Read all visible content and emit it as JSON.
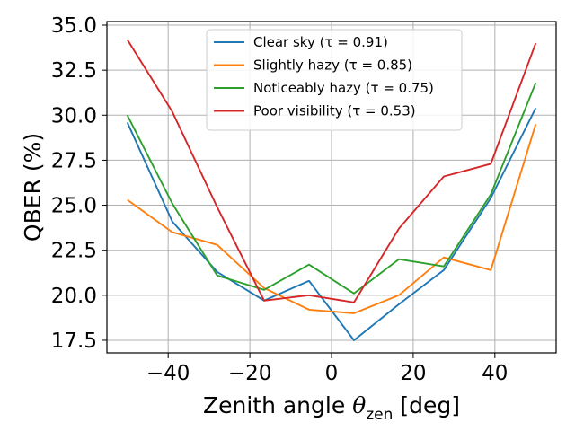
{
  "chart_data": {
    "type": "line",
    "xlabel": "Zenith angle",
    "xlabel_symbol": "θ",
    "xlabel_subscript": "zen",
    "xlabel_unit": "[deg]",
    "ylabel": "QBER (%)",
    "xlim": [
      -55,
      55
    ],
    "ylim": [
      16.8,
      35.2
    ],
    "xticks": [
      -40,
      -20,
      0,
      20,
      40
    ],
    "xtick_labels": [
      "−40",
      "−20",
      "0",
      "20",
      "40"
    ],
    "yticks": [
      17.5,
      20.0,
      22.5,
      25.0,
      27.5,
      30.0,
      32.5,
      35.0
    ],
    "ytick_labels": [
      "17.5",
      "20.0",
      "22.5",
      "25.0",
      "27.5",
      "30.0",
      "32.5",
      "35.0"
    ],
    "grid": true,
    "legend_position": "top-center",
    "x": [
      -50,
      -39,
      -28,
      -16.5,
      -5.5,
      5.5,
      16.5,
      27.5,
      39,
      50
    ],
    "series": [
      {
        "name": "Clear sky (τ = 0.91)",
        "color": "#1f77b4",
        "values": [
          29.6,
          24.1,
          21.3,
          19.7,
          20.8,
          17.5,
          19.5,
          21.4,
          25.4,
          30.4
        ]
      },
      {
        "name": "Slightly hazy (τ = 0.85)",
        "color": "#ff7f0e",
        "values": [
          25.3,
          23.5,
          22.8,
          20.4,
          19.2,
          19.0,
          20.0,
          22.1,
          21.4,
          29.5
        ]
      },
      {
        "name": "Noticeably hazy (τ = 0.75)",
        "color": "#2ca02c",
        "values": [
          30.0,
          25.1,
          21.1,
          20.3,
          21.7,
          20.1,
          22.0,
          21.6,
          25.6,
          31.8
        ]
      },
      {
        "name": "Poor visibility (τ = 0.53)",
        "color": "#d62728",
        "values": [
          34.2,
          30.2,
          24.9,
          19.7,
          20.0,
          19.6,
          23.7,
          26.6,
          27.3,
          34.0
        ]
      }
    ]
  }
}
